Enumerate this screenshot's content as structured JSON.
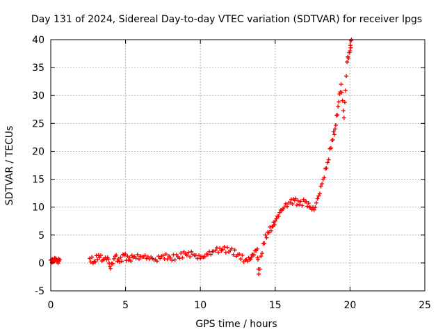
{
  "chart_data": {
    "type": "scatter",
    "title": "Day 131 of 2024, Sidereal Day-to-day VTEC variation (SDTVAR) for receiver lpgs",
    "xlabel": "GPS time / hours",
    "ylabel": "SDTVAR / TECUs",
    "xlim": [
      0,
      25
    ],
    "ylim": [
      -5,
      40
    ],
    "xticks": [
      0,
      5,
      10,
      15,
      20,
      25
    ],
    "yticks": [
      -5,
      0,
      5,
      10,
      15,
      20,
      25,
      30,
      35,
      40
    ],
    "grid": true,
    "marker": "plus",
    "color": "#ff0000",
    "series": [
      {
        "name": "SDTVAR",
        "points": [
          [
            0.0,
            0.5
          ],
          [
            0.15,
            0.2
          ],
          [
            0.3,
            0.8
          ],
          [
            0.45,
            0.3
          ],
          [
            0.6,
            0.6
          ],
          [
            2.6,
            0.8
          ],
          [
            2.9,
            0.3
          ],
          [
            3.2,
            1.4
          ],
          [
            3.5,
            0.6
          ],
          [
            3.8,
            1.0
          ],
          [
            4.0,
            -1.0
          ],
          [
            4.3,
            1.2
          ],
          [
            4.6,
            0.2
          ],
          [
            4.9,
            1.4
          ],
          [
            5.2,
            0.5
          ],
          [
            5.5,
            1.0
          ],
          [
            6.0,
            1.2
          ],
          [
            6.5,
            1.1
          ],
          [
            7.0,
            0.6
          ],
          [
            7.5,
            1.3
          ],
          [
            8.0,
            0.9
          ],
          [
            8.5,
            1.1
          ],
          [
            9.0,
            1.6
          ],
          [
            9.5,
            1.5
          ],
          [
            10.0,
            0.8
          ],
          [
            10.5,
            1.5
          ],
          [
            11.0,
            2.2
          ],
          [
            11.5,
            2.4
          ],
          [
            12.0,
            2.3
          ],
          [
            12.5,
            1.5
          ],
          [
            13.0,
            0.5
          ],
          [
            13.3,
            0.6
          ],
          [
            13.5,
            1.5
          ],
          [
            13.8,
            2.5
          ],
          [
            13.9,
            -2.0
          ],
          [
            14.2,
            3.5
          ],
          [
            14.5,
            5.5
          ],
          [
            14.8,
            6.5
          ],
          [
            15.0,
            7.5
          ],
          [
            15.3,
            9.0
          ],
          [
            15.6,
            10.0
          ],
          [
            16.0,
            10.8
          ],
          [
            16.3,
            11.2
          ],
          [
            16.6,
            10.5
          ],
          [
            17.0,
            11.0
          ],
          [
            17.3,
            10.0
          ],
          [
            17.6,
            9.5
          ],
          [
            17.9,
            12.0
          ],
          [
            18.2,
            15.0
          ],
          [
            18.5,
            18.0
          ],
          [
            18.8,
            22.0
          ],
          [
            19.0,
            24.0
          ],
          [
            19.2,
            28.0
          ],
          [
            19.4,
            32.0
          ],
          [
            19.6,
            26.0
          ],
          [
            19.8,
            36.0
          ],
          [
            20.0,
            38.0
          ],
          [
            20.1,
            40.0
          ]
        ]
      }
    ]
  }
}
